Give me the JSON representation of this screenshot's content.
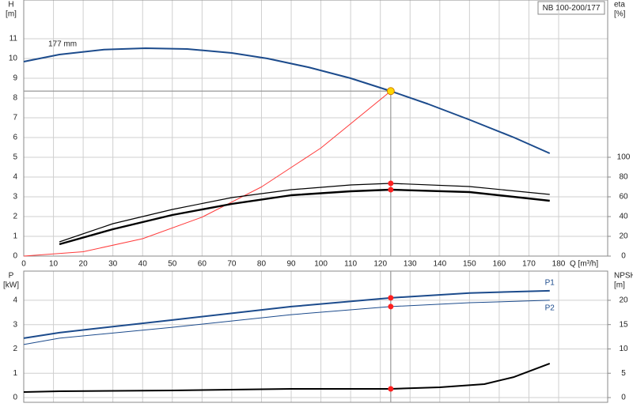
{
  "chart_data": [
    {
      "type": "line",
      "title": "NB 100-200/177",
      "xlabel": "Q [m³/h]",
      "ylabel": [
        "H",
        "[m]"
      ],
      "y2label": [
        "eta",
        "[%]"
      ],
      "xlim": [
        0,
        196.5
      ],
      "xticks": [
        0,
        10,
        20,
        30,
        40,
        50,
        60,
        70,
        80,
        90,
        100,
        110,
        120,
        130,
        140,
        150,
        160,
        170,
        180
      ],
      "ylim": [
        0,
        12.96
      ],
      "yticks": [
        0,
        1,
        2,
        3,
        4,
        5,
        6,
        7,
        8,
        9,
        10,
        11
      ],
      "y2lim": [
        0,
        259.2
      ],
      "y2ticks": [
        0,
        20,
        40,
        60,
        80,
        100
      ],
      "grid": true,
      "show_xtick_labels": true,
      "duty_x": 123.5,
      "series": [
        {
          "name": "177 mm",
          "name_at": "start",
          "color": "#1c4b8c",
          "width": 2,
          "marker_color": "#ffd700",
          "crosshair": true,
          "x": [
            0,
            12,
            27,
            41,
            55,
            70,
            82,
            96,
            110,
            123.5,
            136,
            150,
            165,
            177
          ],
          "values": [
            9.84,
            10.2,
            10.45,
            10.52,
            10.48,
            10.28,
            10.0,
            9.55,
            9.0,
            8.35,
            7.7,
            6.9,
            6.0,
            5.2
          ]
        },
        {
          "color": "#ff3b3b",
          "width": 1,
          "x": [
            0,
            20,
            40,
            60,
            80,
            100,
            123.5
          ],
          "values": [
            0,
            0.22,
            0.88,
            1.97,
            3.5,
            5.47,
            8.35
          ]
        },
        {
          "axis": "y2",
          "color": "#000000",
          "width": 1.2,
          "marker_color": "#ff2020",
          "x": [
            12,
            30,
            50,
            70,
            90,
            110,
            123.5,
            150,
            177
          ],
          "values": [
            14.4,
            32.8,
            47.2,
            59.2,
            67.2,
            72,
            73.6,
            70.4,
            62.4
          ]
        },
        {
          "axis": "y2",
          "color": "#000000",
          "width": 2.4,
          "marker_color": "#ff2020",
          "x": [
            12,
            30,
            50,
            70,
            90,
            110,
            123.5,
            150,
            177
          ],
          "values": [
            12,
            27.2,
            41.6,
            52.8,
            61.6,
            65.6,
            67.2,
            64.8,
            56
          ]
        }
      ]
    },
    {
      "type": "line",
      "ylabel": [
        "P",
        "[kW]"
      ],
      "y2label": [
        "NPSH",
        "[m]"
      ],
      "xlim": [
        0,
        196.5
      ],
      "xticks": [
        0,
        10,
        20,
        30,
        40,
        50,
        60,
        70,
        80,
        90,
        100,
        110,
        120,
        130,
        140,
        150,
        160,
        170,
        180
      ],
      "ylim": [
        0,
        5.2
      ],
      "yticks": [
        0,
        1,
        2,
        3,
        4
      ],
      "y2lim": [
        0,
        26
      ],
      "y2ticks": [
        0,
        5,
        10,
        15,
        20
      ],
      "grid": true,
      "show_xtick_labels": false,
      "duty_x": 123.5,
      "series": [
        {
          "name": "P1",
          "name_at": "end-above",
          "color": "#1c4b8c",
          "width": 2,
          "marker_color": "#ff2020",
          "x": [
            0,
            12,
            50,
            90,
            123.5,
            150,
            177
          ],
          "values": [
            2.44,
            2.67,
            3.19,
            3.74,
            4.1,
            4.3,
            4.39
          ]
        },
        {
          "name": "P2",
          "name_at": "end-below",
          "color": "#1c4b8c",
          "width": 1,
          "marker_color": "#ff2020",
          "x": [
            0,
            12,
            50,
            90,
            123.5,
            150,
            177
          ],
          "values": [
            2.18,
            2.44,
            2.89,
            3.41,
            3.74,
            3.9,
            4.0
          ]
        },
        {
          "axis": "y2",
          "color": "#000000",
          "width": 2,
          "marker_color": "#ff2020",
          "x": [
            0,
            12,
            50,
            90,
            123.5,
            140,
            155,
            165,
            177
          ],
          "values": [
            1.14,
            1.3,
            1.46,
            1.79,
            1.79,
            2.11,
            2.76,
            4.23,
            7.0
          ]
        }
      ]
    }
  ]
}
